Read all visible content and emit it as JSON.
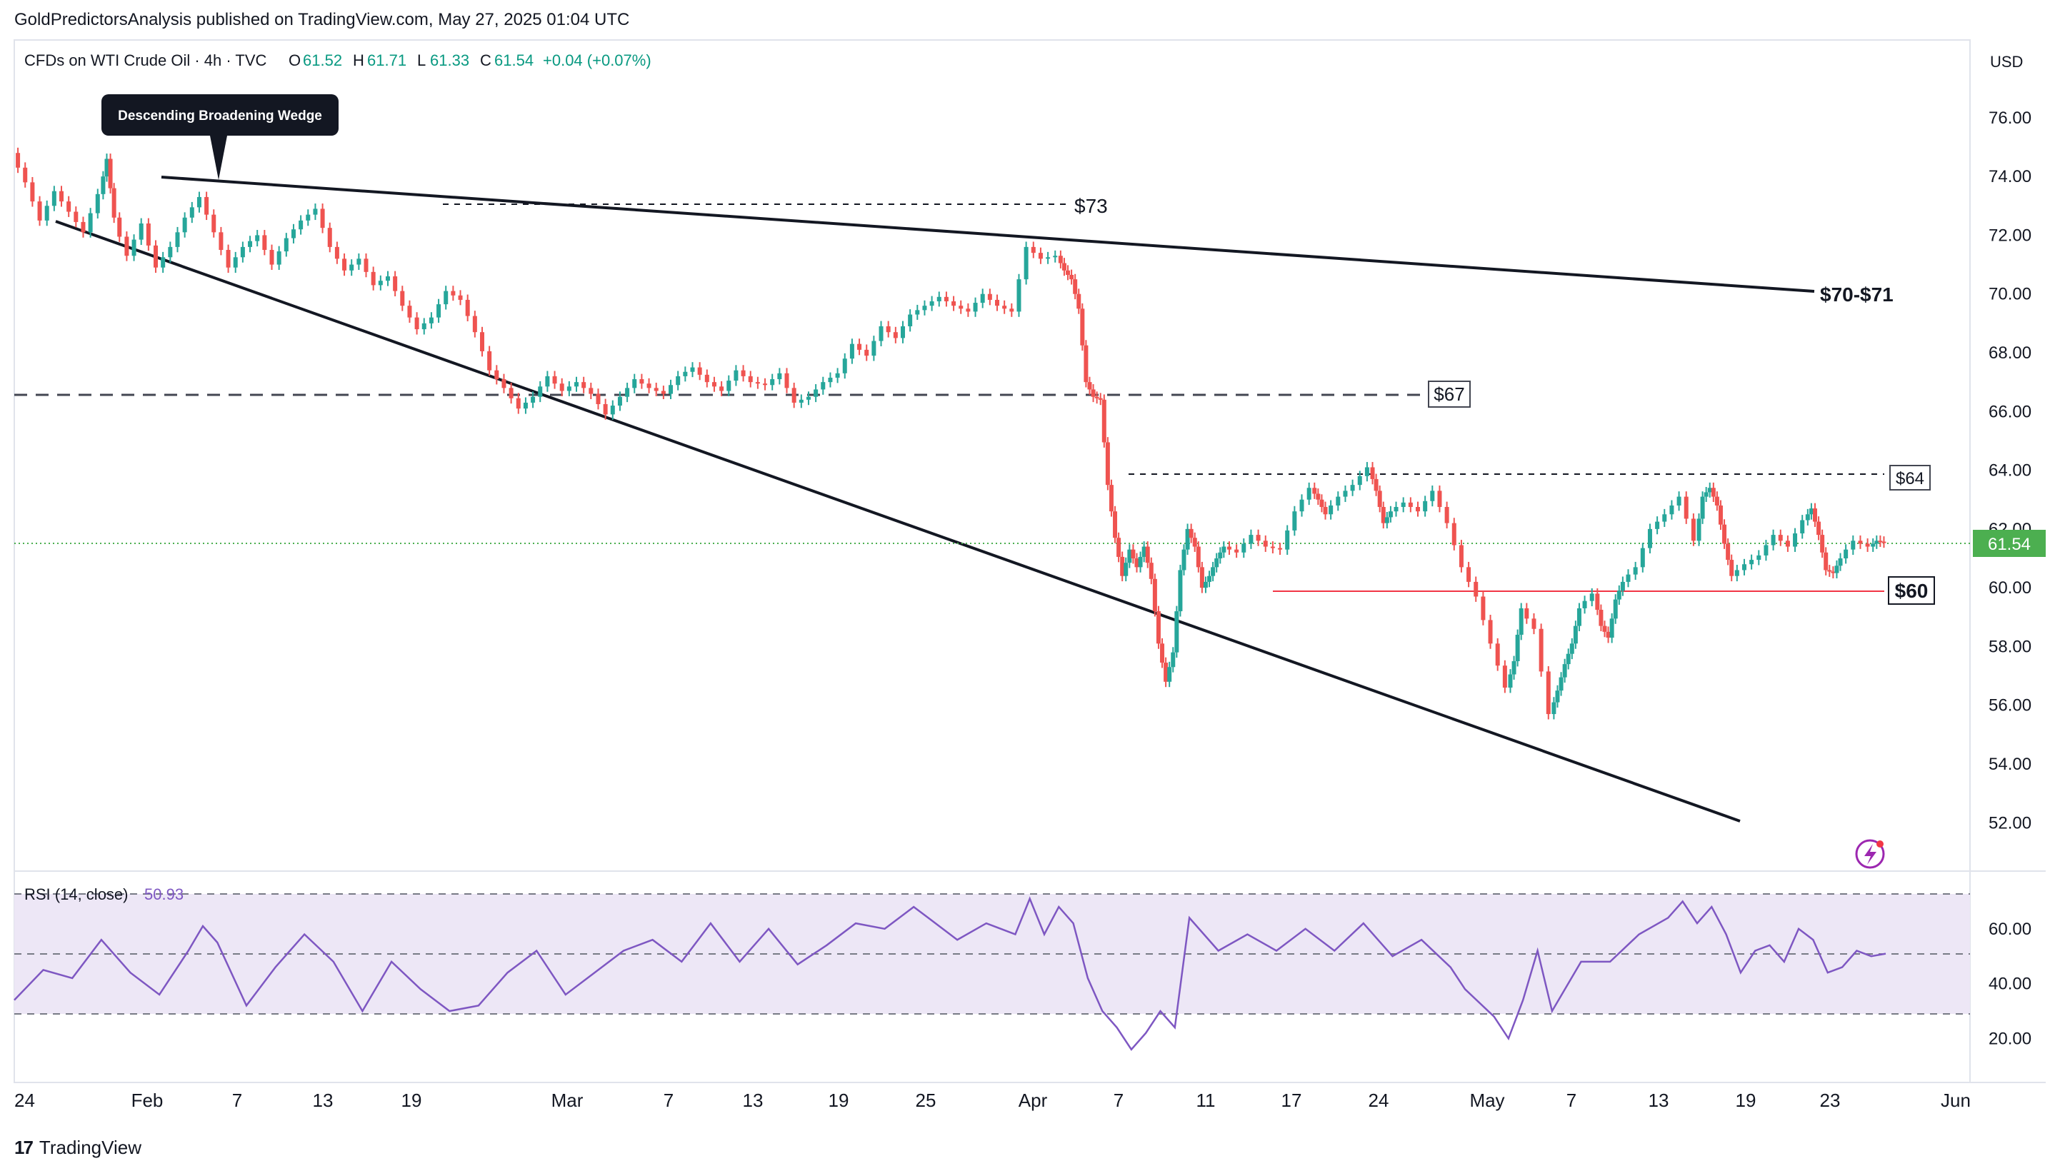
{
  "publisher_line": "GoldPredictorsAnalysis published on TradingView.com, May 27, 2025 01:04 UTC",
  "footer_brand": "TradingView",
  "legend": {
    "symbol": "CFDs on WTI Crude Oil · 4h · TVC",
    "open_label": "O",
    "open": "61.52",
    "high_label": "H",
    "high": "61.71",
    "low_label": "L",
    "low": "61.33",
    "close_label": "C",
    "close": "61.54",
    "change": "+0.04 (+0.07%)"
  },
  "currency": "USD",
  "last_price_tag": "61.54",
  "rsi": {
    "label": "RSI (14, close)",
    "value": "50.93",
    "upper_band": 70,
    "mid_band": 50,
    "lower_band": 30,
    "ticks": [
      "60.00",
      "40.00",
      "20.00"
    ]
  },
  "annotations": {
    "wedge_callout": "Descending Broadening Wedge",
    "level_73": "$73",
    "level_70_71": "$70-$71",
    "level_67": "$67",
    "level_64": "$64",
    "level_60": "$60"
  },
  "colors": {
    "up": "#26a69a",
    "down": "#ef5350",
    "rsi_line": "#7e57c2",
    "rsi_band": "#ede7f6",
    "last_price": "#4caf50",
    "support_line": "#f23645",
    "trendline": "#131722"
  },
  "chart_data": {
    "type": "line",
    "price_axis": {
      "ylim": [
        50.5,
        78.5
      ],
      "ticks": [
        "76.00",
        "74.00",
        "72.00",
        "70.00",
        "68.00",
        "66.00",
        "64.00",
        "62.00",
        "60.00",
        "58.00",
        "56.00",
        "54.00",
        "52.00"
      ]
    },
    "time_axis": {
      "ticks": [
        "24",
        "Feb",
        "7",
        "13",
        "19",
        "Mar",
        "7",
        "13",
        "19",
        "25",
        "Apr",
        "7",
        "11",
        "17",
        "24",
        "May",
        "7",
        "13",
        "19",
        "23",
        "Jun"
      ]
    },
    "series": [
      {
        "values": [
          [
            0,
            74.8
          ],
          [
            8,
            73.8
          ],
          [
            16,
            72.5
          ],
          [
            24,
            73.5
          ],
          [
            32,
            72.8
          ],
          [
            40,
            72.1
          ],
          [
            48,
            73.4
          ],
          [
            52,
            74.6
          ],
          [
            56,
            72.6
          ],
          [
            64,
            71.3
          ],
          [
            72,
            72.4
          ],
          [
            80,
            70.9
          ],
          [
            88,
            71.6
          ],
          [
            96,
            72.6
          ],
          [
            104,
            73.3
          ],
          [
            112,
            72.1
          ],
          [
            120,
            70.9
          ],
          [
            128,
            71.6
          ],
          [
            136,
            72.0
          ],
          [
            144,
            71.0
          ],
          [
            152,
            71.9
          ],
          [
            160,
            72.5
          ],
          [
            168,
            72.9
          ],
          [
            176,
            71.6
          ],
          [
            184,
            70.8
          ],
          [
            192,
            71.2
          ],
          [
            200,
            70.3
          ],
          [
            208,
            70.6
          ],
          [
            216,
            69.6
          ],
          [
            224,
            68.8
          ],
          [
            232,
            69.2
          ],
          [
            240,
            70.1
          ],
          [
            248,
            69.8
          ],
          [
            256,
            68.7
          ],
          [
            264,
            67.4
          ],
          [
            272,
            66.8
          ],
          [
            280,
            66.1
          ],
          [
            288,
            66.5
          ],
          [
            296,
            67.2
          ],
          [
            304,
            66.7
          ],
          [
            312,
            67.0
          ],
          [
            320,
            66.6
          ],
          [
            328,
            65.9
          ],
          [
            336,
            66.5
          ],
          [
            344,
            67.1
          ],
          [
            352,
            66.8
          ],
          [
            360,
            66.6
          ],
          [
            368,
            67.2
          ],
          [
            376,
            67.5
          ],
          [
            384,
            67.0
          ],
          [
            392,
            66.7
          ],
          [
            400,
            67.4
          ],
          [
            408,
            67.0
          ],
          [
            416,
            66.9
          ],
          [
            424,
            67.3
          ],
          [
            432,
            66.3
          ],
          [
            440,
            66.5
          ],
          [
            448,
            67.0
          ],
          [
            456,
            67.3
          ],
          [
            464,
            68.3
          ],
          [
            472,
            67.9
          ],
          [
            480,
            68.9
          ],
          [
            488,
            68.5
          ],
          [
            496,
            69.3
          ],
          [
            504,
            69.6
          ],
          [
            512,
            69.9
          ],
          [
            520,
            69.6
          ],
          [
            528,
            69.4
          ],
          [
            536,
            70.0
          ],
          [
            544,
            69.6
          ],
          [
            552,
            69.4
          ],
          [
            560,
            71.6
          ],
          [
            568,
            71.2
          ],
          [
            576,
            71.3
          ],
          [
            580,
            70.8
          ],
          [
            584,
            70.5
          ],
          [
            588,
            69.5
          ],
          [
            592,
            67.0
          ],
          [
            596,
            66.5
          ],
          [
            600,
            66.4
          ],
          [
            604,
            63.5
          ],
          [
            608,
            61.7
          ],
          [
            612,
            60.4
          ],
          [
            616,
            61.3
          ],
          [
            620,
            60.7
          ],
          [
            624,
            61.4
          ],
          [
            628,
            60.3
          ],
          [
            632,
            58.1
          ],
          [
            636,
            56.8
          ],
          [
            640,
            57.8
          ],
          [
            644,
            60.6
          ],
          [
            648,
            62.0
          ],
          [
            652,
            61.4
          ],
          [
            656,
            60.0
          ],
          [
            660,
            60.4
          ],
          [
            664,
            61.0
          ],
          [
            668,
            61.4
          ],
          [
            676,
            61.2
          ],
          [
            684,
            61.8
          ],
          [
            692,
            61.4
          ],
          [
            700,
            61.3
          ],
          [
            708,
            62.6
          ],
          [
            716,
            63.4
          ],
          [
            720,
            63.0
          ],
          [
            724,
            62.5
          ],
          [
            732,
            63.1
          ],
          [
            740,
            63.5
          ],
          [
            748,
            64.1
          ],
          [
            752,
            63.3
          ],
          [
            756,
            62.2
          ],
          [
            760,
            62.6
          ],
          [
            768,
            62.9
          ],
          [
            776,
            62.6
          ],
          [
            784,
            63.3
          ],
          [
            792,
            62.2
          ],
          [
            800,
            60.7
          ],
          [
            808,
            59.7
          ],
          [
            816,
            58.1
          ],
          [
            824,
            56.6
          ],
          [
            828,
            57.5
          ],
          [
            832,
            59.3
          ],
          [
            840,
            58.6
          ],
          [
            848,
            55.7
          ],
          [
            852,
            56.5
          ],
          [
            856,
            57.4
          ],
          [
            860,
            58.1
          ],
          [
            864,
            59.3
          ],
          [
            872,
            59.8
          ],
          [
            876,
            58.7
          ],
          [
            880,
            58.3
          ],
          [
            884,
            59.6
          ],
          [
            888,
            60.2
          ],
          [
            896,
            60.7
          ],
          [
            904,
            62.0
          ],
          [
            912,
            62.5
          ],
          [
            920,
            63.1
          ],
          [
            928,
            61.6
          ],
          [
            932,
            63.1
          ],
          [
            936,
            63.4
          ],
          [
            940,
            62.8
          ],
          [
            944,
            61.5
          ],
          [
            948,
            60.4
          ],
          [
            956,
            60.8
          ],
          [
            964,
            61.1
          ],
          [
            972,
            61.8
          ],
          [
            980,
            61.4
          ],
          [
            988,
            62.3
          ],
          [
            992,
            62.7
          ],
          [
            996,
            61.8
          ],
          [
            1000,
            60.6
          ],
          [
            1004,
            60.5
          ],
          [
            1008,
            61.0
          ],
          [
            1016,
            61.6
          ],
          [
            1024,
            61.4
          ],
          [
            1028,
            61.6
          ],
          [
            1032,
            61.54
          ]
        ]
      }
    ],
    "rsi_values": [
      [
        0,
        34
      ],
      [
        16,
        45
      ],
      [
        32,
        42
      ],
      [
        48,
        56
      ],
      [
        64,
        44
      ],
      [
        80,
        36
      ],
      [
        96,
        52
      ],
      [
        104,
        61
      ],
      [
        112,
        55
      ],
      [
        128,
        32
      ],
      [
        144,
        46
      ],
      [
        160,
        58
      ],
      [
        176,
        48
      ],
      [
        192,
        30
      ],
      [
        208,
        48
      ],
      [
        224,
        38
      ],
      [
        240,
        30
      ],
      [
        256,
        32
      ],
      [
        272,
        44
      ],
      [
        288,
        52
      ],
      [
        304,
        36
      ],
      [
        320,
        44
      ],
      [
        336,
        52
      ],
      [
        352,
        56
      ],
      [
        368,
        48
      ],
      [
        384,
        62
      ],
      [
        400,
        48
      ],
      [
        416,
        60
      ],
      [
        432,
        47
      ],
      [
        448,
        54
      ],
      [
        464,
        62
      ],
      [
        480,
        60
      ],
      [
        496,
        68
      ],
      [
        504,
        64
      ],
      [
        520,
        56
      ],
      [
        536,
        62
      ],
      [
        552,
        58
      ],
      [
        560,
        71
      ],
      [
        568,
        58
      ],
      [
        576,
        68
      ],
      [
        584,
        62
      ],
      [
        592,
        42
      ],
      [
        600,
        30
      ],
      [
        608,
        24
      ],
      [
        616,
        16
      ],
      [
        624,
        22
      ],
      [
        632,
        30
      ],
      [
        640,
        24
      ],
      [
        648,
        64
      ],
      [
        664,
        52
      ],
      [
        680,
        58
      ],
      [
        696,
        52
      ],
      [
        712,
        60
      ],
      [
        728,
        52
      ],
      [
        744,
        62
      ],
      [
        760,
        50
      ],
      [
        776,
        56
      ],
      [
        792,
        46
      ],
      [
        800,
        38
      ],
      [
        816,
        28
      ],
      [
        824,
        20
      ],
      [
        832,
        34
      ],
      [
        840,
        52
      ],
      [
        848,
        30
      ],
      [
        864,
        48
      ],
      [
        880,
        48
      ],
      [
        896,
        58
      ],
      [
        912,
        64
      ],
      [
        920,
        70
      ],
      [
        928,
        62
      ],
      [
        936,
        68
      ],
      [
        944,
        58
      ],
      [
        952,
        44
      ],
      [
        960,
        52
      ],
      [
        968,
        54
      ],
      [
        976,
        48
      ],
      [
        984,
        60
      ],
      [
        992,
        56
      ],
      [
        1000,
        44
      ],
      [
        1008,
        46
      ],
      [
        1016,
        52
      ],
      [
        1024,
        50
      ],
      [
        1032,
        50.93
      ]
    ]
  }
}
